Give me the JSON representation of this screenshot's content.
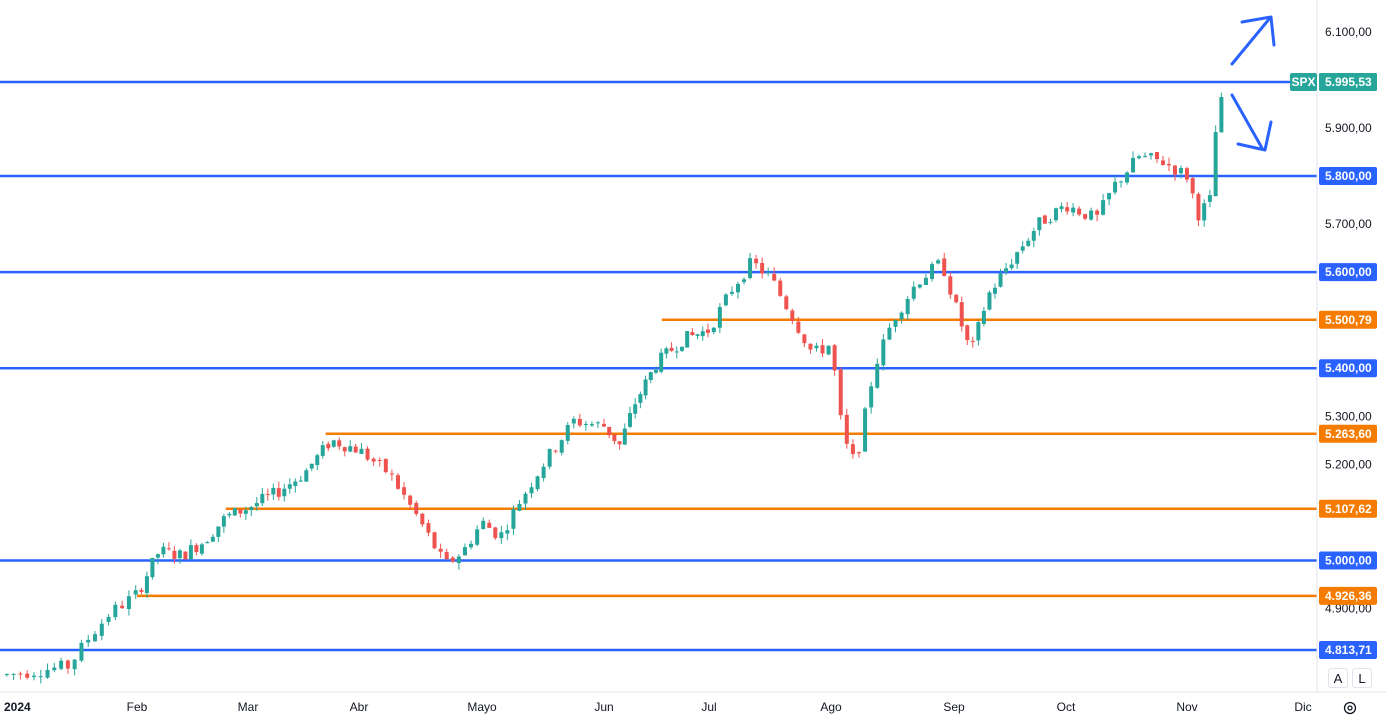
{
  "chart_data": {
    "type": "candlestick",
    "symbol": "SPX",
    "last_price_label": "5.995,53",
    "last_price": 5995.53,
    "y_range": [
      4790,
      6150
    ],
    "y_ticks": [
      {
        "value": 6100,
        "label": "6.100,00"
      },
      {
        "value": 5900,
        "label": "5.900,00"
      },
      {
        "value": 5700,
        "label": "5.700,00"
      },
      {
        "value": 5300,
        "label": "5.300,00"
      },
      {
        "value": 5200,
        "label": "5.200,00"
      },
      {
        "value": 4900,
        "label": "4.900,00"
      }
    ],
    "x_labels": [
      "2024",
      "Feb",
      "Mar",
      "Abr",
      "Mayo",
      "Jun",
      "Jul",
      "Ago",
      "Sep",
      "Oct",
      "Nov",
      "Dic"
    ],
    "levels": [
      {
        "value": 5995.53,
        "label": "5.995,53",
        "color": "#2962ff",
        "kind": "blue",
        "start_month": 0
      },
      {
        "value": 5800.0,
        "label": "5.800,00",
        "color": "#2962ff",
        "kind": "blue",
        "start_month": 0
      },
      {
        "value": 5600.0,
        "label": "5.600,00",
        "color": "#2962ff",
        "kind": "blue",
        "start_month": 0
      },
      {
        "value": 5500.79,
        "label": "5.500,79",
        "color": "#f57c00",
        "kind": "orange",
        "start_month": 5.55
      },
      {
        "value": 5400.0,
        "label": "5.400,00",
        "color": "#2962ff",
        "kind": "blue",
        "start_month": 0
      },
      {
        "value": 5263.6,
        "label": "5.263,60",
        "color": "#f57c00",
        "kind": "orange",
        "start_month": 2.7
      },
      {
        "value": 5107.62,
        "label": "5.107,62",
        "color": "#f57c00",
        "kind": "orange",
        "start_month": 1.8
      },
      {
        "value": 5000.0,
        "label": "5.000,00",
        "color": "#2962ff",
        "kind": "blue",
        "start_month": 0
      },
      {
        "value": 4926.36,
        "label": "4.926,36",
        "color": "#f57c00",
        "kind": "orange",
        "start_month": 1.0
      },
      {
        "value": 4813.71,
        "label": "4.813,71",
        "color": "#2962ff",
        "kind": "blue",
        "start_month": 0
      }
    ],
    "price_path": [
      [
        0.0,
        4760
      ],
      [
        0.5,
        4780
      ],
      [
        0.65,
        4840
      ],
      [
        0.8,
        4890
      ],
      [
        1.0,
        4930
      ],
      [
        1.2,
        5020
      ],
      [
        1.4,
        5010
      ],
      [
        1.6,
        5040
      ],
      [
        1.8,
        5090
      ],
      [
        2.0,
        5110
      ],
      [
        2.25,
        5140
      ],
      [
        2.5,
        5180
      ],
      [
        2.75,
        5250
      ],
      [
        3.0,
        5230
      ],
      [
        3.25,
        5180
      ],
      [
        3.5,
        5080
      ],
      [
        3.7,
        4990
      ],
      [
        3.85,
        5020
      ],
      [
        4.0,
        5080
      ],
      [
        4.15,
        5050
      ],
      [
        4.3,
        5120
      ],
      [
        4.5,
        5200
      ],
      [
        4.75,
        5290
      ],
      [
        5.0,
        5280
      ],
      [
        5.15,
        5240
      ],
      [
        5.3,
        5330
      ],
      [
        5.5,
        5410
      ],
      [
        5.75,
        5460
      ],
      [
        6.0,
        5480
      ],
      [
        6.2,
        5570
      ],
      [
        6.35,
        5620
      ],
      [
        6.5,
        5590
      ],
      [
        6.7,
        5500
      ],
      [
        6.85,
        5430
      ],
      [
        7.0,
        5450
      ],
      [
        7.1,
        5250
      ],
      [
        7.2,
        5200
      ],
      [
        7.35,
        5400
      ],
      [
        7.5,
        5500
      ],
      [
        7.7,
        5580
      ],
      [
        7.9,
        5620
      ],
      [
        8.0,
        5540
      ],
      [
        8.15,
        5430
      ],
      [
        8.3,
        5550
      ],
      [
        8.5,
        5620
      ],
      [
        8.75,
        5700
      ],
      [
        9.0,
        5740
      ],
      [
        9.25,
        5710
      ],
      [
        9.4,
        5780
      ],
      [
        9.6,
        5840
      ],
      [
        9.8,
        5830
      ],
      [
        10.0,
        5800
      ],
      [
        10.1,
        5720
      ],
      [
        10.2,
        5750
      ],
      [
        10.25,
        5900
      ],
      [
        10.33,
        5990
      ]
    ],
    "annotations": [
      {
        "type": "arrow",
        "direction": "up"
      },
      {
        "type": "arrow",
        "direction": "down"
      }
    ],
    "colors": {
      "up": "#26a69a",
      "down": "#ef5350",
      "blue_level": "#2962ff",
      "orange_level": "#f57c00",
      "symbol_tag": "#26a69a"
    },
    "grid": false
  },
  "controls": {
    "auto_label": "A",
    "log_label": "L",
    "settings_icon": "gear-icon"
  }
}
